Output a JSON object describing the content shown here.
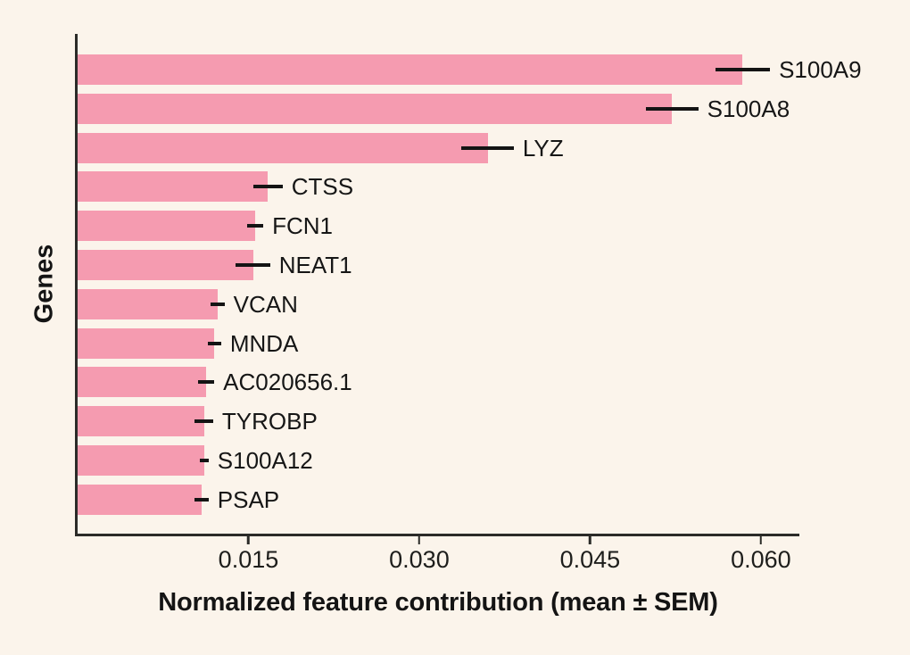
{
  "chart_data": {
    "type": "bar",
    "orientation": "horizontal",
    "title": "",
    "xlabel": "Normalized feature contribution (mean ± SEM)",
    "ylabel": "Genes",
    "categories": [
      "S100A9",
      "S100A8",
      "LYZ",
      "CTSS",
      "FCN1",
      "NEAT1",
      "VCAN",
      "MNDA",
      "AC020656.1",
      "TYROBP",
      "S100A12",
      "PSAP"
    ],
    "values": [
      0.0584,
      0.0522,
      0.036,
      0.0167,
      0.0156,
      0.0154,
      0.0123,
      0.012,
      0.0113,
      0.0111,
      0.0111,
      0.0109
    ],
    "sem": [
      0.0024,
      0.0023,
      0.0023,
      0.0013,
      0.0007,
      0.0015,
      0.0006,
      0.0006,
      0.0007,
      0.0008,
      0.0004,
      0.0006
    ],
    "error_bar_style": "horizontal line centered on bar end, no caps",
    "xlim": [
      0,
      0.0633
    ],
    "xticks": [
      0.015,
      0.03,
      0.045,
      0.06
    ],
    "xtick_labels": [
      "0.015",
      "0.030",
      "0.045",
      "0.060"
    ],
    "grid": false,
    "legend_position": "none",
    "colors": {
      "bar_fill": "#F59BB0",
      "error_bar": "#141414",
      "axis_spine": "#2B2B28",
      "text": "#161616",
      "background": "#FBF4EB"
    }
  }
}
